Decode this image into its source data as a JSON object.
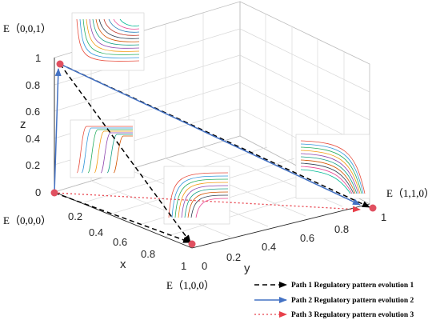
{
  "axes": {
    "x": {
      "label": "x",
      "ticks": [
        "0.2",
        "0.4",
        "0.6",
        "0.8",
        "1"
      ]
    },
    "y": {
      "label": "y",
      "ticks": [
        "0",
        "0.2",
        "0.4",
        "0.6",
        "0.8",
        "1"
      ]
    },
    "z": {
      "label": "z",
      "ticks": [
        "0",
        "0.2",
        "0.4",
        "0.6",
        "0.8",
        "1"
      ]
    },
    "grid": true
  },
  "points": [
    {
      "id": "p001",
      "label": "E（0,0,1）",
      "coords": [
        0,
        0,
        1
      ]
    },
    {
      "id": "p000",
      "label": "E（0,0,0）",
      "coords": [
        0,
        0,
        0
      ]
    },
    {
      "id": "p100",
      "label": "E（1,0,0）",
      "coords": [
        1,
        0,
        0
      ]
    },
    {
      "id": "p110",
      "label": "E（1,1,0）",
      "coords": [
        1,
        1,
        0
      ]
    }
  ],
  "colors": {
    "point": "#e05060",
    "path1": "#000000",
    "path2": "#4472c4",
    "path3": "#e8404a"
  },
  "legend": [
    {
      "label": "Path 1 Regulatory pattern evolution 1",
      "style": "black-dashed-arrow"
    },
    {
      "label": "Path 2 Regulatory pattern evolution 2",
      "style": "blue-solid-arrow"
    },
    {
      "label": "Path 3 Regulatory pattern evolution 3",
      "style": "red-dotted-arrow"
    }
  ]
}
